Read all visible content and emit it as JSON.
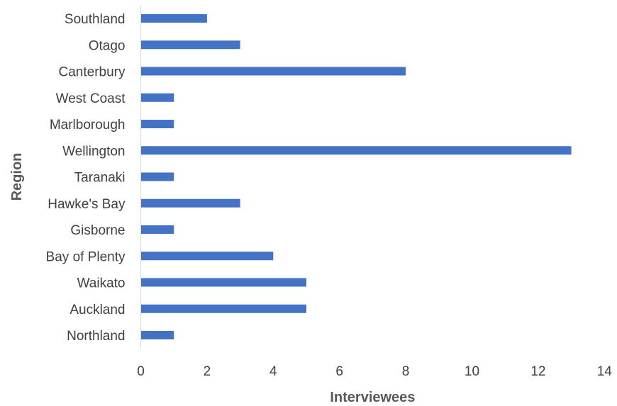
{
  "chart_data": {
    "type": "bar",
    "orientation": "horizontal",
    "categories": [
      "Northland",
      "Auckland",
      "Waikato",
      "Bay of Plenty",
      "Gisborne",
      "Hawke's Bay",
      "Taranaki",
      "Wellington",
      "Marlborough",
      "West Coast",
      "Canterbury",
      "Otago",
      "Southland"
    ],
    "values": [
      1,
      5,
      5,
      4,
      1,
      3,
      1,
      13,
      1,
      1,
      8,
      3,
      2
    ],
    "title": "",
    "xlabel": "Interviewees",
    "ylabel": "Region",
    "xlim": [
      0,
      14
    ],
    "xticks": [
      "0",
      "2",
      "4",
      "6",
      "8",
      "10",
      "12",
      "14"
    ],
    "grid": false,
    "bar_color": "#4472C4",
    "axis_color": "#d9d9d9",
    "text_color": "#404040"
  }
}
